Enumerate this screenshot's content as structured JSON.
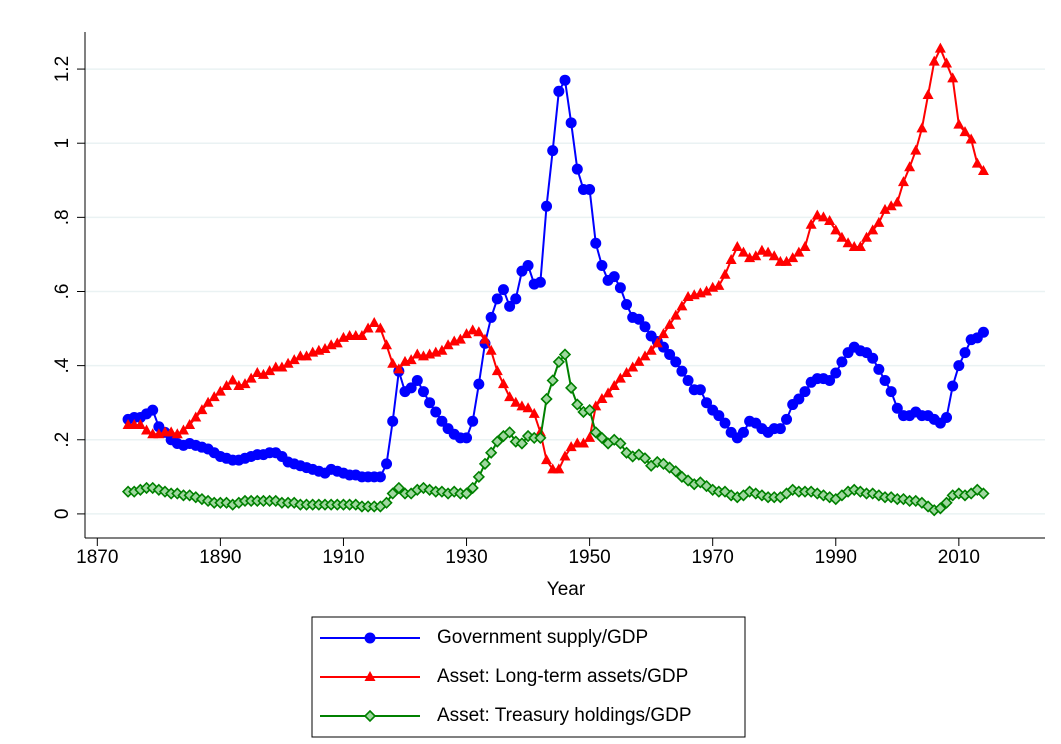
{
  "chart_data": {
    "type": "line",
    "x_label": "Year",
    "x": [
      1875,
      1876,
      1877,
      1878,
      1879,
      1880,
      1881,
      1882,
      1883,
      1884,
      1885,
      1886,
      1887,
      1888,
      1889,
      1890,
      1891,
      1892,
      1893,
      1894,
      1895,
      1896,
      1897,
      1898,
      1899,
      1900,
      1901,
      1902,
      1903,
      1904,
      1905,
      1906,
      1907,
      1908,
      1909,
      1910,
      1911,
      1912,
      1913,
      1914,
      1915,
      1916,
      1917,
      1918,
      1919,
      1920,
      1921,
      1922,
      1923,
      1924,
      1925,
      1926,
      1927,
      1928,
      1929,
      1930,
      1931,
      1932,
      1933,
      1934,
      1935,
      1936,
      1937,
      1938,
      1939,
      1940,
      1941,
      1942,
      1943,
      1944,
      1945,
      1946,
      1947,
      1948,
      1949,
      1950,
      1951,
      1952,
      1953,
      1954,
      1955,
      1956,
      1957,
      1958,
      1959,
      1960,
      1961,
      1962,
      1963,
      1964,
      1965,
      1966,
      1967,
      1968,
      1969,
      1970,
      1971,
      1972,
      1973,
      1974,
      1975,
      1976,
      1977,
      1978,
      1979,
      1980,
      1981,
      1982,
      1983,
      1984,
      1985,
      1986,
      1987,
      1988,
      1989,
      1990,
      1991,
      1992,
      1993,
      1994,
      1995,
      1996,
      1997,
      1998,
      1999,
      2000,
      2001,
      2002,
      2003,
      2004,
      2005,
      2006,
      2007,
      2008,
      2009,
      2010,
      2011,
      2012,
      2013,
      2014
    ],
    "series": [
      {
        "name": "Government supply/GDP",
        "color": "#0000ff",
        "marker": "circle",
        "values": [
          0.255,
          0.26,
          0.26,
          0.27,
          0.28,
          0.235,
          0.22,
          0.2,
          0.19,
          0.185,
          0.19,
          0.185,
          0.18,
          0.175,
          0.165,
          0.155,
          0.15,
          0.145,
          0.145,
          0.15,
          0.155,
          0.16,
          0.16,
          0.165,
          0.165,
          0.155,
          0.14,
          0.135,
          0.13,
          0.125,
          0.12,
          0.115,
          0.11,
          0.12,
          0.115,
          0.11,
          0.105,
          0.105,
          0.1,
          0.1,
          0.1,
          0.1,
          0.135,
          0.25,
          0.385,
          0.33,
          0.34,
          0.36,
          0.33,
          0.3,
          0.275,
          0.25,
          0.23,
          0.215,
          0.205,
          0.205,
          0.25,
          0.35,
          0.46,
          0.53,
          0.58,
          0.605,
          0.56,
          0.58,
          0.655,
          0.67,
          0.62,
          0.625,
          0.83,
          0.98,
          1.14,
          1.17,
          1.055,
          0.93,
          0.875,
          0.875,
          0.73,
          0.67,
          0.63,
          0.64,
          0.61,
          0.565,
          0.53,
          0.525,
          0.505,
          0.48,
          0.465,
          0.45,
          0.43,
          0.41,
          0.385,
          0.36,
          0.335,
          0.335,
          0.3,
          0.28,
          0.265,
          0.245,
          0.22,
          0.205,
          0.22,
          0.25,
          0.245,
          0.23,
          0.22,
          0.23,
          0.23,
          0.255,
          0.295,
          0.31,
          0.33,
          0.355,
          0.365,
          0.365,
          0.36,
          0.38,
          0.41,
          0.435,
          0.45,
          0.44,
          0.435,
          0.42,
          0.39,
          0.36,
          0.33,
          0.285,
          0.265,
          0.265,
          0.275,
          0.265,
          0.265,
          0.255,
          0.245,
          0.26,
          0.345,
          0.4,
          0.435,
          0.47,
          0.475,
          0.49
        ]
      },
      {
        "name": "Asset: Long-term assets/GDP",
        "color": "#ff0000",
        "marker": "triangle",
        "values": [
          0.24,
          0.24,
          0.24,
          0.225,
          0.215,
          0.215,
          0.22,
          0.22,
          0.215,
          0.225,
          0.24,
          0.26,
          0.28,
          0.3,
          0.315,
          0.33,
          0.345,
          0.36,
          0.345,
          0.35,
          0.365,
          0.38,
          0.375,
          0.385,
          0.395,
          0.395,
          0.405,
          0.415,
          0.425,
          0.425,
          0.435,
          0.44,
          0.445,
          0.455,
          0.46,
          0.475,
          0.48,
          0.48,
          0.48,
          0.5,
          0.515,
          0.5,
          0.455,
          0.405,
          0.39,
          0.41,
          0.415,
          0.43,
          0.425,
          0.43,
          0.435,
          0.44,
          0.455,
          0.465,
          0.47,
          0.485,
          0.495,
          0.49,
          0.47,
          0.44,
          0.385,
          0.35,
          0.315,
          0.3,
          0.29,
          0.285,
          0.27,
          0.22,
          0.145,
          0.12,
          0.12,
          0.155,
          0.18,
          0.19,
          0.19,
          0.205,
          0.29,
          0.31,
          0.325,
          0.345,
          0.365,
          0.38,
          0.395,
          0.41,
          0.425,
          0.44,
          0.46,
          0.485,
          0.51,
          0.535,
          0.56,
          0.585,
          0.59,
          0.595,
          0.6,
          0.61,
          0.615,
          0.645,
          0.685,
          0.72,
          0.705,
          0.69,
          0.695,
          0.71,
          0.705,
          0.695,
          0.68,
          0.68,
          0.69,
          0.705,
          0.72,
          0.78,
          0.805,
          0.8,
          0.79,
          0.765,
          0.745,
          0.73,
          0.72,
          0.72,
          0.745,
          0.765,
          0.785,
          0.82,
          0.83,
          0.84,
          0.895,
          0.935,
          0.98,
          1.04,
          1.13,
          1.22,
          1.255,
          1.215,
          1.175,
          1.05,
          1.03,
          1.01,
          0.945,
          0.925
        ]
      },
      {
        "name": "Asset: Treasury holdings/GDP",
        "color": "#008000",
        "marker": "diamond",
        "values": [
          0.06,
          0.06,
          0.065,
          0.07,
          0.07,
          0.065,
          0.06,
          0.055,
          0.055,
          0.05,
          0.05,
          0.045,
          0.04,
          0.035,
          0.03,
          0.03,
          0.03,
          0.025,
          0.03,
          0.035,
          0.035,
          0.035,
          0.035,
          0.035,
          0.035,
          0.03,
          0.03,
          0.03,
          0.025,
          0.025,
          0.025,
          0.025,
          0.025,
          0.025,
          0.025,
          0.025,
          0.025,
          0.025,
          0.02,
          0.02,
          0.02,
          0.02,
          0.03,
          0.055,
          0.07,
          0.055,
          0.055,
          0.065,
          0.07,
          0.065,
          0.06,
          0.06,
          0.055,
          0.06,
          0.055,
          0.055,
          0.07,
          0.1,
          0.135,
          0.165,
          0.195,
          0.21,
          0.22,
          0.195,
          0.19,
          0.21,
          0.205,
          0.205,
          0.31,
          0.36,
          0.41,
          0.43,
          0.34,
          0.295,
          0.275,
          0.28,
          0.22,
          0.205,
          0.19,
          0.2,
          0.19,
          0.165,
          0.155,
          0.16,
          0.15,
          0.13,
          0.14,
          0.135,
          0.125,
          0.115,
          0.1,
          0.09,
          0.08,
          0.085,
          0.075,
          0.065,
          0.06,
          0.06,
          0.05,
          0.045,
          0.05,
          0.06,
          0.055,
          0.05,
          0.045,
          0.045,
          0.045,
          0.055,
          0.065,
          0.06,
          0.06,
          0.06,
          0.055,
          0.05,
          0.045,
          0.04,
          0.05,
          0.06,
          0.065,
          0.06,
          0.055,
          0.055,
          0.05,
          0.045,
          0.045,
          0.04,
          0.04,
          0.035,
          0.035,
          0.03,
          0.02,
          0.01,
          0.015,
          0.03,
          0.05,
          0.055,
          0.05,
          0.055,
          0.065,
          0.055
        ]
      }
    ],
    "xlim": [
      1868,
      2024
    ],
    "xticks": [
      1870,
      1890,
      1910,
      1930,
      1950,
      1970,
      1990,
      2010
    ],
    "ylim": [
      -0.065,
      1.3
    ],
    "yticks": [
      0,
      {
        "value": 0.2,
        "label": ".2"
      },
      {
        "value": 0.4,
        "label": ".4"
      },
      {
        "value": 0.6,
        "label": ".6"
      },
      {
        "value": 0.8,
        "label": ".8"
      },
      1,
      1.2
    ],
    "grid": true,
    "legend": "bottom"
  }
}
